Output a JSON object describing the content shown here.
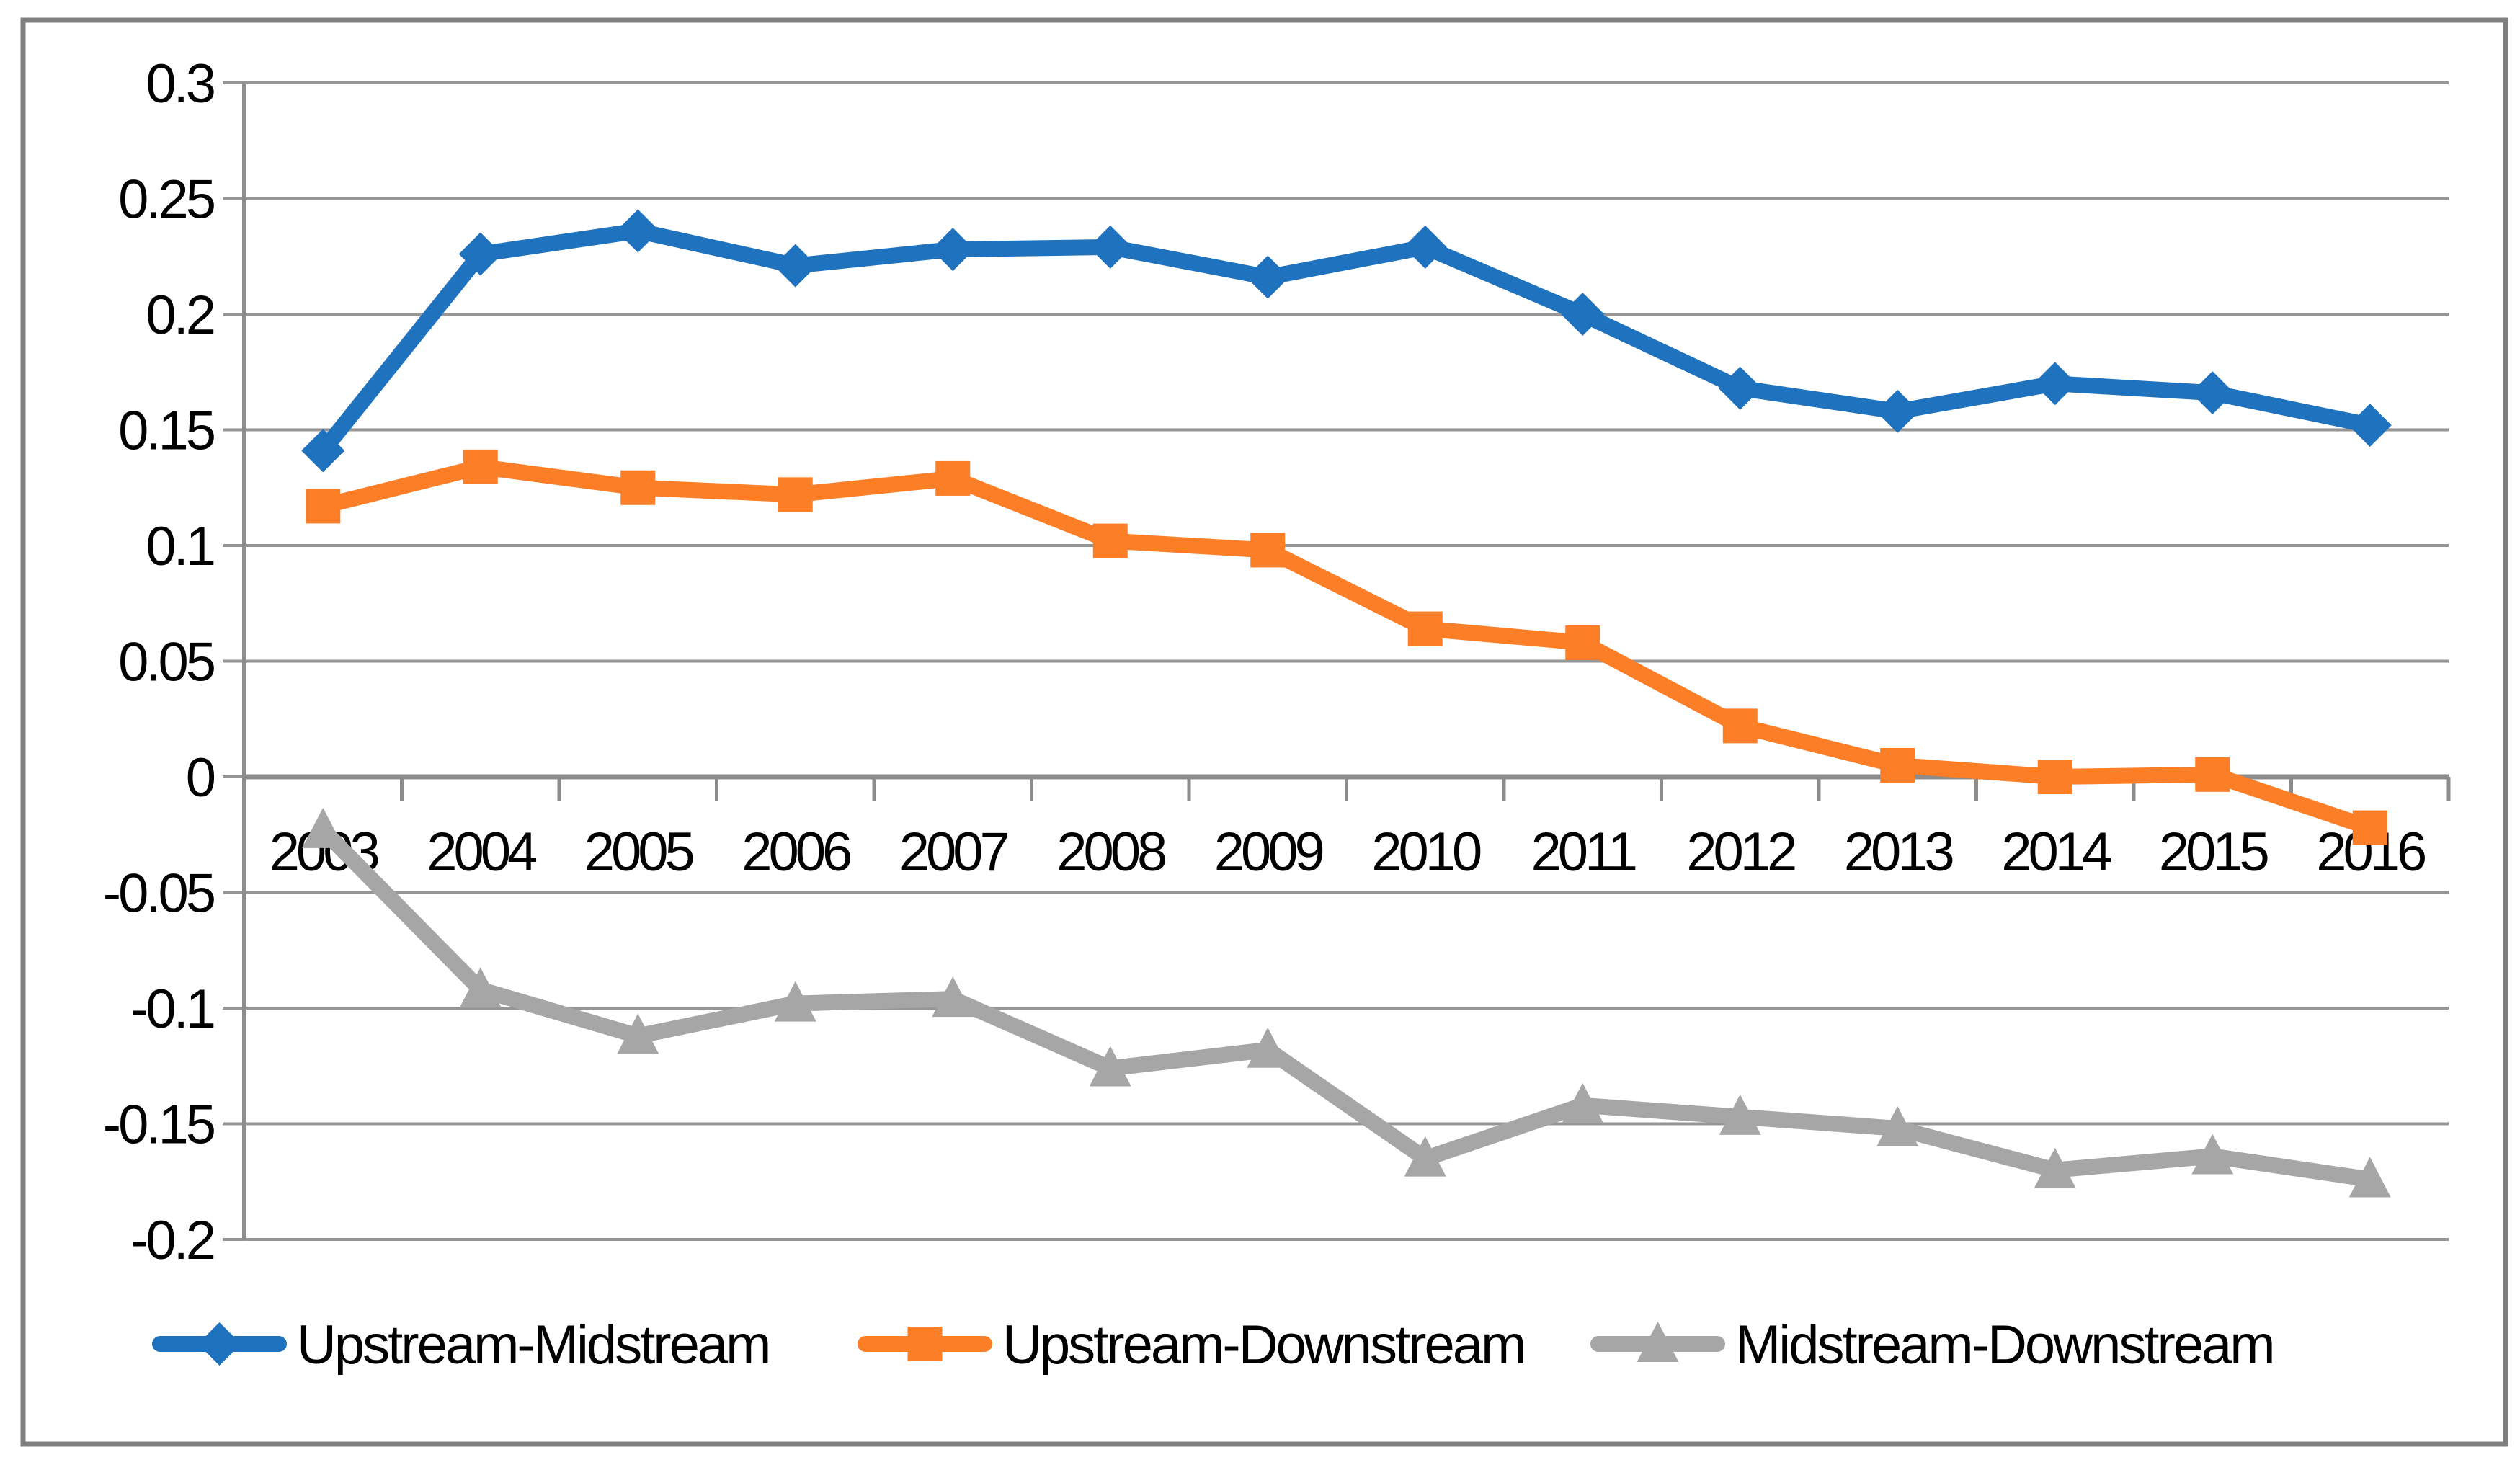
{
  "chart_data": {
    "type": "line",
    "categories": [
      "2003",
      "2004",
      "2005",
      "2006",
      "2007",
      "2008",
      "2009",
      "2010",
      "2011",
      "2012",
      "2013",
      "2014",
      "2015",
      "2016"
    ],
    "series": [
      {
        "name": "Upstream-Midstream",
        "color": "#1F72BE",
        "marker": "diamond",
        "values": [
          0.141,
          0.226,
          0.236,
          0.221,
          0.228,
          0.229,
          0.216,
          0.229,
          0.2,
          0.168,
          0.158,
          0.17,
          0.166,
          0.152
        ]
      },
      {
        "name": "Upstream-Downstream",
        "color": "#FC7E26",
        "marker": "square",
        "values": [
          0.117,
          0.134,
          0.125,
          0.122,
          0.129,
          0.102,
          0.098,
          0.064,
          0.058,
          0.022,
          0.005,
          0.0,
          0.001,
          -0.022
        ]
      },
      {
        "name": "Midstream-Downstream",
        "color": "#A6A6A6",
        "marker": "triangle",
        "values": [
          -0.023,
          -0.092,
          -0.112,
          -0.098,
          -0.096,
          -0.126,
          -0.118,
          -0.165,
          -0.142,
          -0.147,
          -0.152,
          -0.17,
          -0.164,
          -0.174
        ]
      }
    ],
    "title": "",
    "xlabel": "",
    "ylabel": "",
    "ylim": [
      -0.2,
      0.3
    ],
    "ytick_step": 0.05,
    "ytick_labels": [
      "0.3",
      "0.25",
      "0.2",
      "0.15",
      "0.1",
      "0.05",
      "0",
      "-0.05",
      "-0.1",
      "-0.15",
      "-0.2"
    ],
    "grid": true,
    "legend_position": "bottom",
    "grid_color": "#969696",
    "axis_color": "#8C8C8C",
    "border_color": "#808080",
    "background_color": "#FFFFFF"
  }
}
